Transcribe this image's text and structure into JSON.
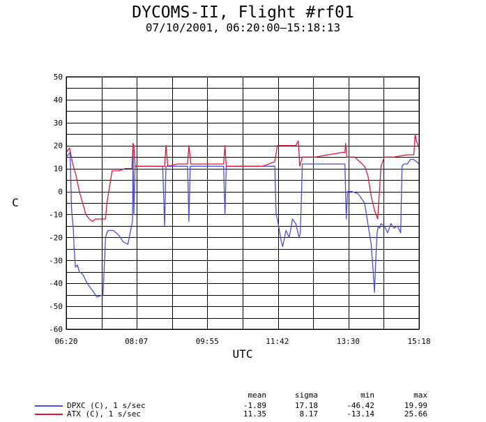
{
  "header": {
    "title": "DYCOMS-II, Flight #rf01",
    "subtitle": "07/10/2001, 06:20:00–15:18:13"
  },
  "chart_data": {
    "type": "line",
    "xlabel": "UTC",
    "ylabel": "C",
    "xticks": [
      "06:20",
      "08:07",
      "09:55",
      "11:42",
      "13:30",
      "15:18"
    ],
    "xlim": [
      "06:20",
      "15:18"
    ],
    "ylim": [
      -60,
      50
    ],
    "yticks": [
      -60,
      -50,
      -40,
      -30,
      -20,
      -10,
      0,
      10,
      20,
      30,
      40,
      50
    ],
    "grid": true,
    "colors": {
      "DPXC": "#4b4be6",
      "ATX": "#e0143c"
    },
    "series": [
      {
        "name": "DPXC (C), 1 s/sec",
        "x": [
          "06:20",
          "06:26",
          "06:28",
          "06:31",
          "06:32",
          "06:34",
          "06:37",
          "06:40",
          "06:45",
          "06:52",
          "06:57",
          "07:07",
          "07:16",
          "07:20",
          "07:22",
          "07:24",
          "07:32",
          "07:40",
          "07:47",
          "07:54",
          "08:01",
          "08:02",
          "08:03",
          "08:05",
          "08:06",
          "08:08",
          "08:20",
          "08:32",
          "08:47",
          "08:50",
          "08:52",
          "08:55",
          "09:10",
          "09:20",
          "09:25",
          "09:27",
          "09:29",
          "09:40",
          "10:00",
          "10:20",
          "10:22",
          "10:24",
          "10:40",
          "11:00",
          "11:20",
          "11:38",
          "11:40",
          "11:42",
          "11:48",
          "11:50",
          "11:55",
          "12:00",
          "12:05",
          "12:10",
          "12:15",
          "12:17",
          "12:20",
          "12:40",
          "13:00",
          "13:20",
          "13:25",
          "13:27",
          "13:29",
          "13:35",
          "13:45",
          "13:55",
          "14:00",
          "14:05",
          "14:08",
          "14:10",
          "14:12",
          "14:14",
          "14:16",
          "14:18",
          "14:20",
          "14:25",
          "14:30",
          "14:35",
          "14:40",
          "14:45",
          "14:50",
          "14:52",
          "14:55",
          "15:00",
          "15:05",
          "15:10",
          "15:18"
        ],
        "values": [
          15,
          17,
          -7,
          -17,
          -25,
          -33,
          -32,
          -35,
          -36,
          -40,
          -42,
          -46,
          -45,
          -20,
          -18,
          -17,
          -17,
          -19,
          -22,
          -23,
          -13,
          18,
          -10,
          11,
          11,
          11,
          11,
          11,
          11,
          -15,
          11,
          11,
          11,
          11,
          11,
          -13,
          11,
          11,
          11,
          11,
          -10,
          11,
          11,
          11,
          11,
          11,
          -10,
          -12,
          -22,
          -24,
          -17,
          -20,
          -12,
          -14,
          -20,
          -18,
          12,
          12,
          12,
          12,
          12,
          -12,
          0,
          0,
          -1,
          -5,
          -14,
          -23,
          -35,
          -44,
          -30,
          -18,
          -15,
          -16,
          -14,
          -15,
          -18,
          -14,
          -16,
          -15,
          -18,
          11,
          12,
          12,
          14,
          14,
          12
        ]
      },
      {
        "name": "ATX (C), 1 s/sec",
        "x": [
          "06:20",
          "06:25",
          "06:30",
          "06:35",
          "06:40",
          "06:45",
          "06:50",
          "06:55",
          "07:00",
          "07:05",
          "07:10",
          "07:16",
          "07:20",
          "07:22",
          "07:30",
          "07:40",
          "07:50",
          "08:00",
          "08:02",
          "08:03",
          "08:05",
          "08:10",
          "08:30",
          "08:50",
          "08:52",
          "08:55",
          "09:10",
          "09:25",
          "09:27",
          "09:30",
          "09:50",
          "10:10",
          "10:20",
          "10:22",
          "10:24",
          "10:40",
          "11:00",
          "11:20",
          "11:38",
          "11:42",
          "12:00",
          "12:10",
          "12:14",
          "12:16",
          "12:20",
          "12:40",
          "13:00",
          "13:20",
          "13:25",
          "13:26",
          "13:28",
          "13:40",
          "13:55",
          "14:00",
          "14:05",
          "14:10",
          "14:15",
          "14:20",
          "14:25",
          "14:40",
          "15:00",
          "15:10",
          "15:12",
          "15:14",
          "15:18"
        ],
        "values": [
          17,
          19,
          12,
          7,
          0,
          -5,
          -10,
          -12,
          -13,
          -12,
          -12,
          -12,
          -12,
          -5,
          9,
          9,
          10,
          10,
          21,
          20,
          11,
          11,
          11,
          11,
          20,
          11,
          12,
          12,
          20,
          12,
          12,
          12,
          12,
          20,
          11,
          11,
          11,
          11,
          13,
          20,
          20,
          20,
          22,
          11,
          15,
          15,
          16,
          17,
          17,
          21,
          15,
          15,
          11,
          7,
          -2,
          -8,
          -12,
          11,
          15,
          15,
          16,
          16,
          25,
          22,
          19
        ]
      }
    ]
  },
  "stats": {
    "headers": {
      "mean": "mean",
      "sigma": "sigma",
      "min": "min",
      "max": "max"
    },
    "rows": [
      {
        "label": "DPXC (C), 1 s/sec",
        "mean": "-1.89",
        "sigma": "17.18",
        "min": "-46.42",
        "max": "19.99"
      },
      {
        "label": "ATX (C), 1 s/sec",
        "mean": "11.35",
        "sigma": "8.17",
        "min": "-13.14",
        "max": "25.66"
      }
    ]
  }
}
